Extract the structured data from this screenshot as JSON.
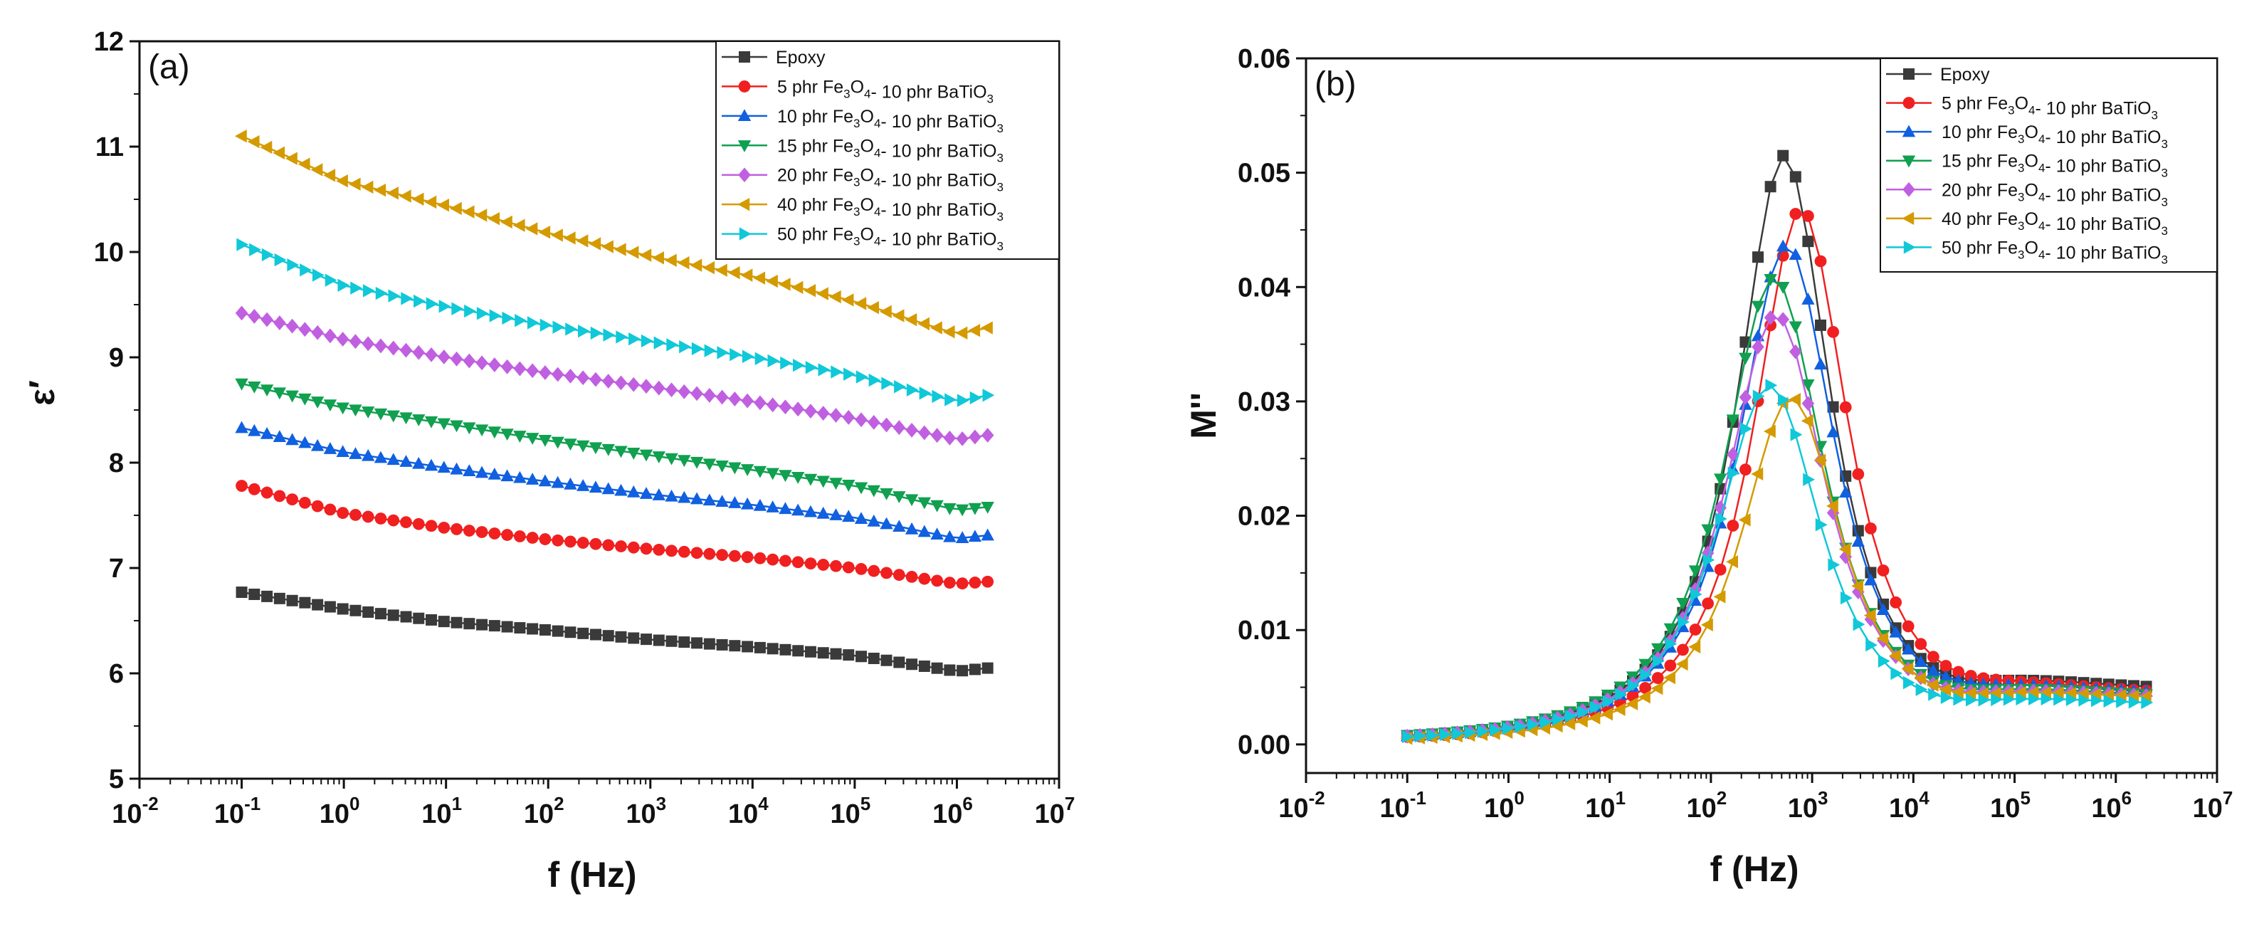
{
  "chart_data": [
    {
      "type": "line",
      "panel_label": "(a)",
      "xlabel": "f (Hz)",
      "ylabel": "ε′",
      "xscale": "log",
      "xlim": [
        0.01,
        10000000
      ],
      "ylim": [
        5,
        12
      ],
      "yticks": [
        "5",
        "6",
        "7",
        "8",
        "9",
        "10",
        "11",
        "12"
      ],
      "xticks": [
        {
          "base": "10",
          "exp": "-2"
        },
        {
          "base": "10",
          "exp": "-1"
        },
        {
          "base": "10",
          "exp": "0"
        },
        {
          "base": "10",
          "exp": "1"
        },
        {
          "base": "10",
          "exp": "2"
        },
        {
          "base": "10",
          "exp": "3"
        },
        {
          "base": "10",
          "exp": "4"
        },
        {
          "base": "10",
          "exp": "5"
        },
        {
          "base": "10",
          "exp": "6"
        },
        {
          "base": "10",
          "exp": "7"
        }
      ],
      "legend_position": "top-right",
      "x": [
        0.1,
        1,
        10,
        100,
        1000,
        10000,
        100000,
        1000000,
        2000000
      ],
      "series": [
        {
          "name": "Epoxy",
          "marker": "square",
          "color": "#3a3a3a",
          "values": [
            6.77,
            6.61,
            6.49,
            6.41,
            6.32,
            6.25,
            6.17,
            6.02,
            6.05
          ]
        },
        {
          "name": "5 phr Fe3O4- 10 phr BaTiO3",
          "marker": "circle",
          "color": "#f02020",
          "values": [
            7.78,
            7.52,
            7.38,
            7.27,
            7.18,
            7.1,
            7.0,
            6.85,
            6.87
          ]
        },
        {
          "name": "10 phr Fe3O4- 10 phr BaTiO3",
          "marker": "triangle-up",
          "color": "#1060e0",
          "values": [
            8.33,
            8.1,
            7.95,
            7.82,
            7.7,
            7.6,
            7.48,
            7.28,
            7.31
          ]
        },
        {
          "name": "15 phr Fe3O4- 10 phr BaTiO3",
          "marker": "triangle-down",
          "color": "#10a050",
          "values": [
            8.75,
            8.52,
            8.37,
            8.21,
            8.07,
            7.93,
            7.78,
            7.55,
            7.58
          ]
        },
        {
          "name": "20 phr Fe3O4- 10 phr BaTiO3",
          "marker": "diamond",
          "color": "#c060e0",
          "values": [
            9.42,
            9.17,
            9.0,
            8.85,
            8.72,
            8.58,
            8.42,
            8.22,
            8.26
          ]
        },
        {
          "name": "40 phr Fe3O4- 10 phr BaTiO3",
          "marker": "triangle-left",
          "color": "#d49a00",
          "values": [
            11.1,
            10.67,
            10.44,
            10.18,
            9.96,
            9.77,
            9.53,
            9.22,
            9.28
          ]
        },
        {
          "name": "50 phr Fe3O4- 10 phr BaTiO3",
          "marker": "triangle-right",
          "color": "#10c8d8",
          "values": [
            10.07,
            9.68,
            9.48,
            9.3,
            9.15,
            9.0,
            8.83,
            8.58,
            8.64
          ]
        }
      ]
    },
    {
      "type": "line",
      "panel_label": "(b)",
      "xlabel": "f (Hz)",
      "ylabel": "M''",
      "xscale": "log",
      "xlim": [
        0.01,
        10000000
      ],
      "ylim": [
        -0.0025,
        0.06
      ],
      "yticks": [
        "0.00",
        "0.01",
        "0.02",
        "0.03",
        "0.04",
        "0.05",
        "0.06"
      ],
      "xticks": [
        {
          "base": "10",
          "exp": "-2"
        },
        {
          "base": "10",
          "exp": "-1"
        },
        {
          "base": "10",
          "exp": "0"
        },
        {
          "base": "10",
          "exp": "1"
        },
        {
          "base": "10",
          "exp": "2"
        },
        {
          "base": "10",
          "exp": "3"
        },
        {
          "base": "10",
          "exp": "4"
        },
        {
          "base": "10",
          "exp": "5"
        },
        {
          "base": "10",
          "exp": "6"
        },
        {
          "base": "10",
          "exp": "7"
        }
      ],
      "legend_position": "top-right",
      "series": [
        {
          "name": "Epoxy",
          "marker": "square",
          "color": "#3a3a3a",
          "peak": 0.0515,
          "f_peak": 530,
          "baseline": 0.0001,
          "high": 0.005,
          "width": 0.55
        },
        {
          "name": "5 phr Fe3O4- 10 phr BaTiO3",
          "marker": "circle",
          "color": "#f02020",
          "peak": 0.0468,
          "f_peak": 780,
          "baseline": 0.0001,
          "high": 0.0045,
          "width": 0.56
        },
        {
          "name": "10 phr Fe3O4- 10 phr BaTiO3",
          "marker": "triangle-up",
          "color": "#1060e0",
          "peak": 0.0437,
          "f_peak": 560,
          "baseline": 0.0001,
          "high": 0.0045,
          "width": 0.58
        },
        {
          "name": "15 phr Fe3O4- 10 phr BaTiO3",
          "marker": "triangle-down",
          "color": "#10a050",
          "peak": 0.0408,
          "f_peak": 420,
          "baseline": 0.0001,
          "high": 0.0043,
          "width": 0.6
        },
        {
          "name": "20 phr Fe3O4- 10 phr BaTiO3",
          "marker": "diamond",
          "color": "#c060e0",
          "peak": 0.0376,
          "f_peak": 440,
          "baseline": 0.0001,
          "high": 0.0042,
          "width": 0.6
        },
        {
          "name": "40 phr Fe3O4- 10 phr BaTiO3",
          "marker": "triangle-left",
          "color": "#d49a00",
          "peak": 0.0303,
          "f_peak": 620,
          "baseline": 0.0001,
          "high": 0.0042,
          "width": 0.6
        },
        {
          "name": "50 phr Fe3O4- 10 phr BaTiO3",
          "marker": "triangle-right",
          "color": "#10c8d8",
          "peak": 0.0314,
          "f_peak": 380,
          "baseline": 0.0001,
          "high": 0.0036,
          "width": 0.62
        }
      ]
    }
  ]
}
